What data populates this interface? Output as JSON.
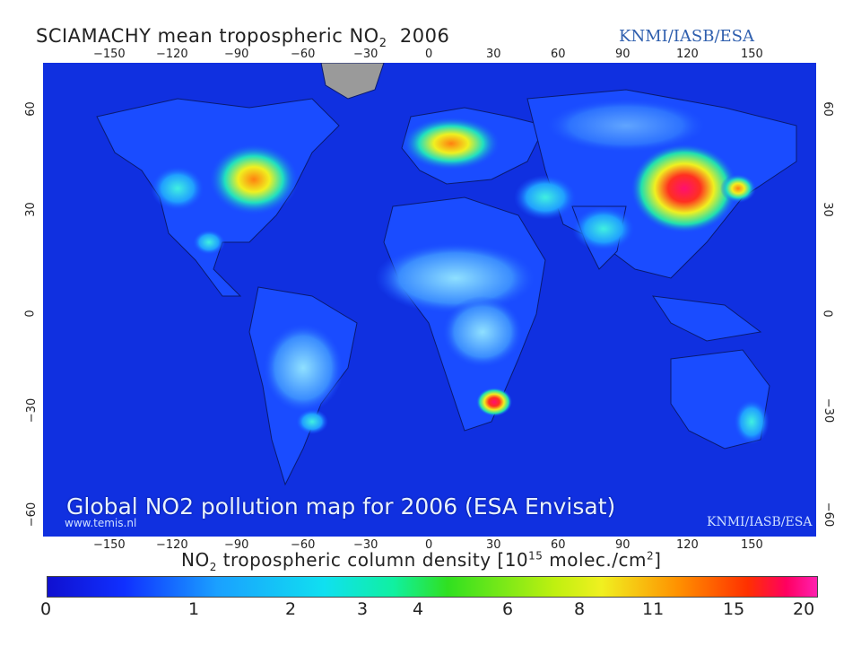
{
  "header": {
    "title_main": "SCIAMACHY mean tropospheric NO",
    "title_sub": "2",
    "title_year": "2006",
    "credit": "KNMI/IASB/ESA"
  },
  "map": {
    "lon_ticks_top": [
      "−150",
      "−120",
      "−90",
      "−60",
      "−30",
      "0",
      "30",
      "60",
      "90",
      "120",
      "150"
    ],
    "lon_ticks_bottom": [
      "−150",
      "−120",
      "−90",
      "−60",
      "−30",
      "0",
      "30",
      "60",
      "90",
      "120",
      "150"
    ],
    "lat_ticks": [
      "60",
      "30",
      "0",
      "−30",
      "−60"
    ],
    "watermark_left": "www.temis.nl",
    "watermark_right": "KNMI/IASB/ESA",
    "caption": "Global NO2 pollution map for 2006 (ESA Envisat)"
  },
  "colorbar": {
    "label_pre": "NO",
    "label_sub": "2",
    "label_mid": " tropospheric column density [10",
    "label_sup": "15",
    "label_post": " molec./cm",
    "label_sup2": "2",
    "label_end": "]",
    "ticks": [
      "0",
      "1",
      "2",
      "3",
      "4",
      "6",
      "8",
      "11",
      "15",
      "20"
    ]
  },
  "colors": {
    "ocean": "#1030e0",
    "land_low": "#1a4cff",
    "moderate": "#1ad0f0",
    "high": "#f0f020",
    "very_high": "#ff1070"
  }
}
